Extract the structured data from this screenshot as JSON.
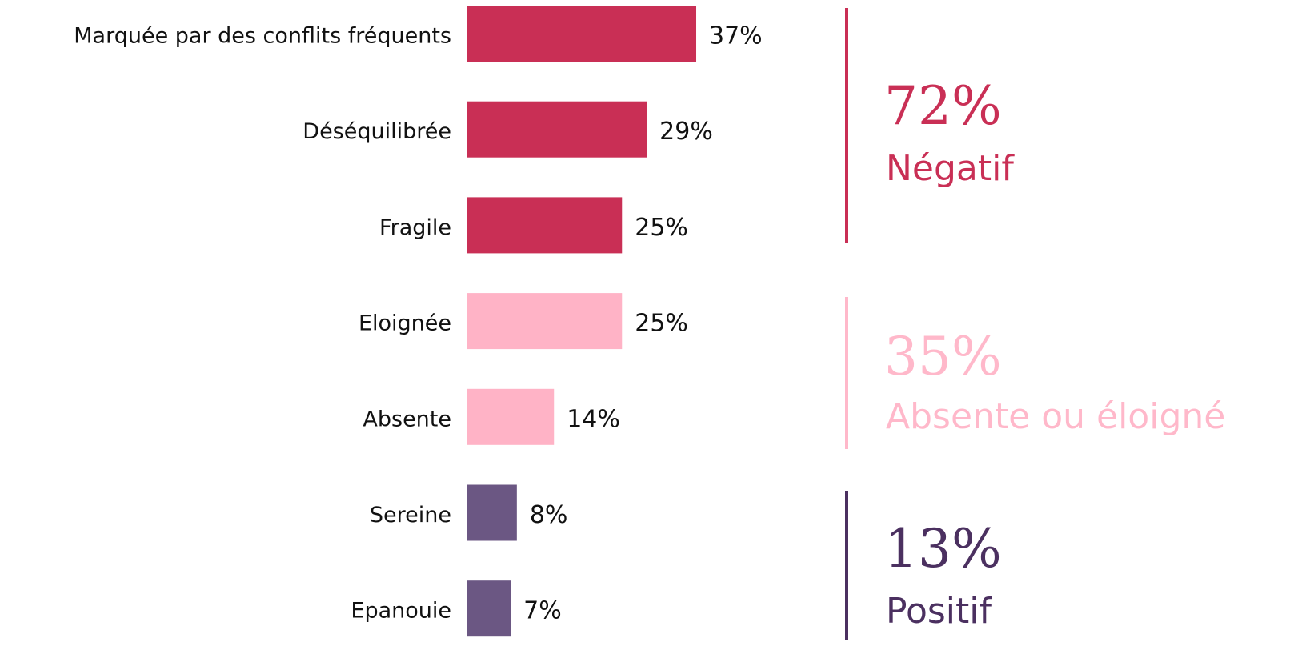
{
  "chart_data": {
    "type": "hbar",
    "categories": [
      "Marquée par des conflits fréquents",
      "Déséquilibrée",
      "Fragile",
      "Eloignée",
      "Absente",
      "Sereine",
      "Epanouie"
    ],
    "values": [
      37,
      29,
      25,
      25,
      14,
      8,
      7
    ],
    "value_labels": [
      "37%",
      "29%",
      "25%",
      "25%",
      "14%",
      "8%",
      "7%"
    ],
    "colors": [
      "#c92f55",
      "#c92f55",
      "#c92f55",
      "#ffb3c6",
      "#ffb3c6",
      "#6b5783",
      "#6b5783"
    ],
    "annotations": [
      {
        "value": "72%",
        "label": "Négatif",
        "color": "#c92f55"
      },
      {
        "value": "35%",
        "label": "Absente ou éloigné",
        "color": "#ffb8ca"
      },
      {
        "value": "13%",
        "label": "Positif",
        "color": "#4b3060"
      }
    ]
  }
}
